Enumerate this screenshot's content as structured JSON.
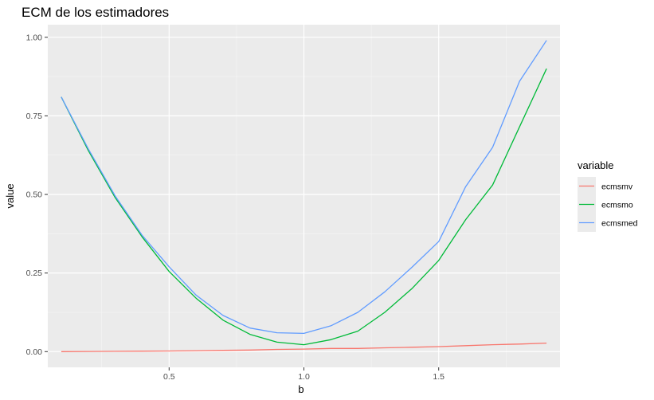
{
  "chart_data": {
    "type": "line",
    "title": "ECM de los estimadores",
    "xlabel": "b",
    "ylabel": "value",
    "xlim": [
      0.05,
      1.95
    ],
    "ylim": [
      -0.05,
      1.04
    ],
    "x_ticks": [
      0.5,
      1.0,
      1.5
    ],
    "x_tick_labels": [
      "0.5",
      "1.0",
      "1.5"
    ],
    "x_minor_ticks": [
      0.25,
      0.75,
      1.25,
      1.75
    ],
    "y_ticks": [
      0.0,
      0.25,
      0.5,
      0.75,
      1.0
    ],
    "y_tick_labels": [
      "0.00",
      "0.25",
      "0.50",
      "0.75",
      "1.00"
    ],
    "y_minor_ticks": [
      0.125,
      0.375,
      0.625,
      0.875
    ],
    "grid": true,
    "legend": {
      "title": "variable",
      "placement": "right"
    },
    "x": [
      0.1,
      0.2,
      0.3,
      0.4,
      0.5,
      0.6,
      0.7,
      0.8,
      0.9,
      1.0,
      1.1,
      1.2,
      1.3,
      1.4,
      1.5,
      1.6,
      1.7,
      1.8,
      1.9
    ],
    "series": [
      {
        "name": "ecmsmv",
        "color": "#f8766d",
        "values": [
          0.0,
          0.0005,
          0.001,
          0.0015,
          0.002,
          0.003,
          0.004,
          0.005,
          0.007,
          0.008,
          0.01,
          0.01,
          0.012,
          0.014,
          0.016,
          0.019,
          0.022,
          0.024,
          0.027
        ]
      },
      {
        "name": "ecmsmo",
        "color": "#00ba38",
        "values": [
          0.81,
          0.64,
          0.49,
          0.365,
          0.255,
          0.17,
          0.1,
          0.055,
          0.03,
          0.022,
          0.038,
          0.065,
          0.125,
          0.2,
          0.29,
          0.42,
          0.53,
          0.715,
          0.9
        ]
      },
      {
        "name": "ecmsmed",
        "color": "#619cff",
        "values": [
          0.81,
          0.645,
          0.495,
          0.37,
          0.27,
          0.18,
          0.115,
          0.075,
          0.06,
          0.058,
          0.082,
          0.125,
          0.19,
          0.268,
          0.35,
          0.525,
          0.65,
          0.86,
          0.99
        ]
      }
    ]
  }
}
